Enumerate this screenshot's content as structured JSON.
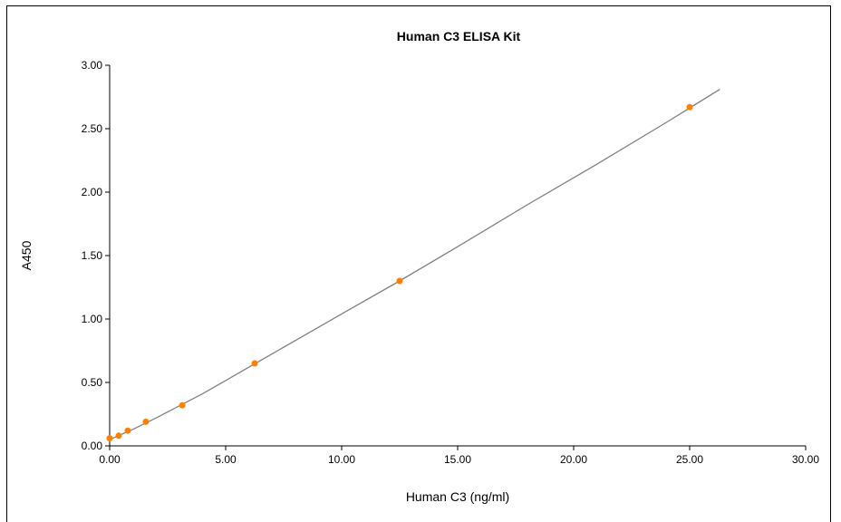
{
  "chart_data": {
    "type": "scatter",
    "title": "Human C3 ELISA Kit",
    "xlabel": "Human C3 (ng/ml)",
    "ylabel": "A450",
    "xlim": [
      0,
      30
    ],
    "ylim": [
      0,
      3
    ],
    "x_ticks": [
      "0.00",
      "5.00",
      "10.00",
      "15.00",
      "20.00",
      "25.00",
      "30.00"
    ],
    "y_ticks": [
      "0.00",
      "0.50",
      "1.00",
      "1.50",
      "2.00",
      "2.50",
      "3.00"
    ],
    "grid": false,
    "series": [
      {
        "points": [
          {
            "x": 0,
            "y": 0.06
          },
          {
            "x": 0.39,
            "y": 0.08
          },
          {
            "x": 0.78,
            "y": 0.12
          },
          {
            "x": 1.56,
            "y": 0.19
          },
          {
            "x": 3.13,
            "y": 0.32
          },
          {
            "x": 6.25,
            "y": 0.65
          },
          {
            "x": 12.5,
            "y": 1.3
          },
          {
            "x": 25,
            "y": 2.67
          }
        ],
        "color": "#ff8000"
      }
    ],
    "fit_curve": {
      "points": [
        {
          "x": 0,
          "y": 0.05
        },
        {
          "x": 1,
          "y": 0.13
        },
        {
          "x": 2,
          "y": 0.22
        },
        {
          "x": 4,
          "y": 0.41
        },
        {
          "x": 6,
          "y": 0.62
        },
        {
          "x": 8,
          "y": 0.83
        },
        {
          "x": 10,
          "y": 1.04
        },
        {
          "x": 12.5,
          "y": 1.3
        },
        {
          "x": 15,
          "y": 1.57
        },
        {
          "x": 18,
          "y": 1.9
        },
        {
          "x": 21,
          "y": 2.22
        },
        {
          "x": 24,
          "y": 2.55
        },
        {
          "x": 26.3,
          "y": 2.81
        }
      ],
      "color": "#808080"
    }
  }
}
